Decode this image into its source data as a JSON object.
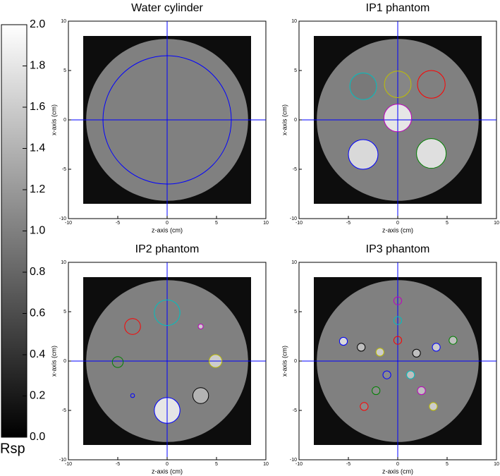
{
  "colorbar": {
    "label": "Rsp",
    "zlim": [
      0,
      2
    ],
    "ticks": [
      {
        "value": 0,
        "label": "0.0"
      },
      0.2,
      0.4,
      0.6,
      0.8,
      {
        "value": 1,
        "label": "1.0"
      },
      1.2,
      1.4,
      1.6,
      1.8,
      {
        "value": 2,
        "label": "2.0"
      }
    ]
  },
  "chart_data": [
    {
      "type": "phantom",
      "title": "Water cylinder",
      "xlabel": "z-axis (cm)",
      "ylabel": "x-axis (cm)",
      "xlim": [
        -10,
        10
      ],
      "ylim": [
        -10,
        10
      ],
      "xticks": [
        -10,
        -5,
        0,
        5,
        10
      ],
      "yticks": [
        -10,
        -5,
        0,
        5,
        10
      ],
      "field": {
        "half": 8.5,
        "rsp": 0.1
      },
      "phantom": {
        "radius": 8.2,
        "rsp": 1.0
      },
      "inserts": [
        {
          "x": 0,
          "y": 0,
          "r": 6.5,
          "color": "#0000ff",
          "rsp": 1.0
        }
      ]
    },
    {
      "type": "phantom",
      "title": "IP1 phantom",
      "xlabel": "z-axis (cm)",
      "ylabel": "x-axis (cm)",
      "xlim": [
        -10,
        10
      ],
      "ylim": [
        -10,
        10
      ],
      "xticks": [
        -10,
        -5,
        0,
        5,
        10
      ],
      "yticks": [
        -10,
        -5,
        0,
        5,
        10
      ],
      "field": {
        "half": 8.5,
        "rsp": 0.1
      },
      "phantom": {
        "radius": 8.2,
        "rsp": 1.0
      },
      "inserts": [
        {
          "x": -3.5,
          "y": 3.4,
          "r": 1.35,
          "color": "#00bfbf",
          "rsp": 0.95
        },
        {
          "x": 0,
          "y": 3.6,
          "r": 1.35,
          "color": "#bfbf00",
          "rsp": 1.05
        },
        {
          "x": 3.4,
          "y": 3.6,
          "r": 1.4,
          "color": "#ff0000",
          "rsp": 1.0
        },
        {
          "x": 0,
          "y": 0.2,
          "r": 1.4,
          "color": "#bf00bf",
          "rsp": 1.8
        },
        {
          "x": -3.5,
          "y": -3.5,
          "r": 1.5,
          "color": "#0000ff",
          "rsp": 1.7
        },
        {
          "x": 3.4,
          "y": -3.4,
          "r": 1.5,
          "color": "#008000",
          "rsp": 1.75
        }
      ]
    },
    {
      "type": "phantom",
      "title": "IP2 phantom",
      "xlabel": "z-axis (cm)",
      "ylabel": "x-axis (cm)",
      "xlim": [
        -10,
        10
      ],
      "ylim": [
        -10,
        10
      ],
      "xticks": [
        -10,
        -5,
        0,
        5,
        10
      ],
      "yticks": [
        -10,
        -5,
        0,
        5,
        10
      ],
      "field": {
        "half": 8.5,
        "rsp": 0.1
      },
      "phantom": {
        "radius": 8.2,
        "rsp": 1.0
      },
      "inserts": [
        {
          "x": 0,
          "y": 4.9,
          "r": 1.3,
          "color": "#00bfbf",
          "rsp": 1.0
        },
        {
          "x": -3.5,
          "y": 3.5,
          "r": 0.8,
          "color": "#ff0000",
          "rsp": 1.0
        },
        {
          "x": 3.4,
          "y": 3.5,
          "r": 0.25,
          "color": "#bf00bf",
          "rsp": 1.6
        },
        {
          "x": -5,
          "y": -0.1,
          "r": 0.55,
          "color": "#008000",
          "rsp": 1.0
        },
        {
          "x": 4.9,
          "y": 0,
          "r": 0.65,
          "color": "#bfbf00",
          "rsp": 1.6
        },
        {
          "x": -3.5,
          "y": -3.5,
          "r": 0.2,
          "color": "#0000ff",
          "rsp": 1.0
        },
        {
          "x": 3.4,
          "y": -3.5,
          "r": 0.8,
          "color": "#000000",
          "rsp": 1.4
        },
        {
          "x": 0,
          "y": -5,
          "r": 1.3,
          "color": "#0000ff",
          "rsp": 1.8
        }
      ]
    },
    {
      "type": "phantom",
      "title": "IP3 phantom",
      "xlabel": "z-axis (cm)",
      "ylabel": "x-axis (cm)",
      "xlim": [
        -10,
        10
      ],
      "ylim": [
        -10,
        10
      ],
      "xticks": [
        -10,
        -5,
        0,
        5,
        10
      ],
      "yticks": [
        -10,
        -5,
        0,
        5,
        10
      ],
      "field": {
        "half": 8.5,
        "rsp": 0.1
      },
      "phantom": {
        "radius": 8.2,
        "rsp": 1.0
      },
      "inserts": [
        {
          "x": 0,
          "y": 6.1,
          "r": 0.4,
          "color": "#bf00bf",
          "rsp": 1.0
        },
        {
          "x": 0,
          "y": 4.1,
          "r": 0.4,
          "color": "#00bfbf",
          "rsp": 1.0
        },
        {
          "x": 0,
          "y": 2.1,
          "r": 0.4,
          "color": "#ff0000",
          "rsp": 1.0
        },
        {
          "x": -5.5,
          "y": 2,
          "r": 0.4,
          "color": "#0000ff",
          "rsp": 1.7
        },
        {
          "x": -3.7,
          "y": 1.4,
          "r": 0.4,
          "color": "#000000",
          "rsp": 1.5
        },
        {
          "x": -1.8,
          "y": 0.9,
          "r": 0.4,
          "color": "#bfbf00",
          "rsp": 1.6
        },
        {
          "x": 1.9,
          "y": 0.8,
          "r": 0.4,
          "color": "#000000",
          "rsp": 1.5
        },
        {
          "x": 3.9,
          "y": 1.4,
          "r": 0.4,
          "color": "#0000ff",
          "rsp": 1.6
        },
        {
          "x": 5.6,
          "y": 2.1,
          "r": 0.4,
          "color": "#008000",
          "rsp": 1.5
        },
        {
          "x": -1.1,
          "y": -1.4,
          "r": 0.4,
          "color": "#0000ff",
          "rsp": 1.1
        },
        {
          "x": 1.3,
          "y": -1.4,
          "r": 0.4,
          "color": "#00bfbf",
          "rsp": 1.5
        },
        {
          "x": -2.2,
          "y": -3,
          "r": 0.4,
          "color": "#008000",
          "rsp": 1.1
        },
        {
          "x": 2.4,
          "y": -3,
          "r": 0.4,
          "color": "#bf00bf",
          "rsp": 1.5
        },
        {
          "x": -3.4,
          "y": -4.6,
          "r": 0.4,
          "color": "#ff0000",
          "rsp": 1.1
        },
        {
          "x": 3.6,
          "y": -4.6,
          "r": 0.4,
          "color": "#bfbf00",
          "rsp": 1.6
        }
      ]
    }
  ]
}
